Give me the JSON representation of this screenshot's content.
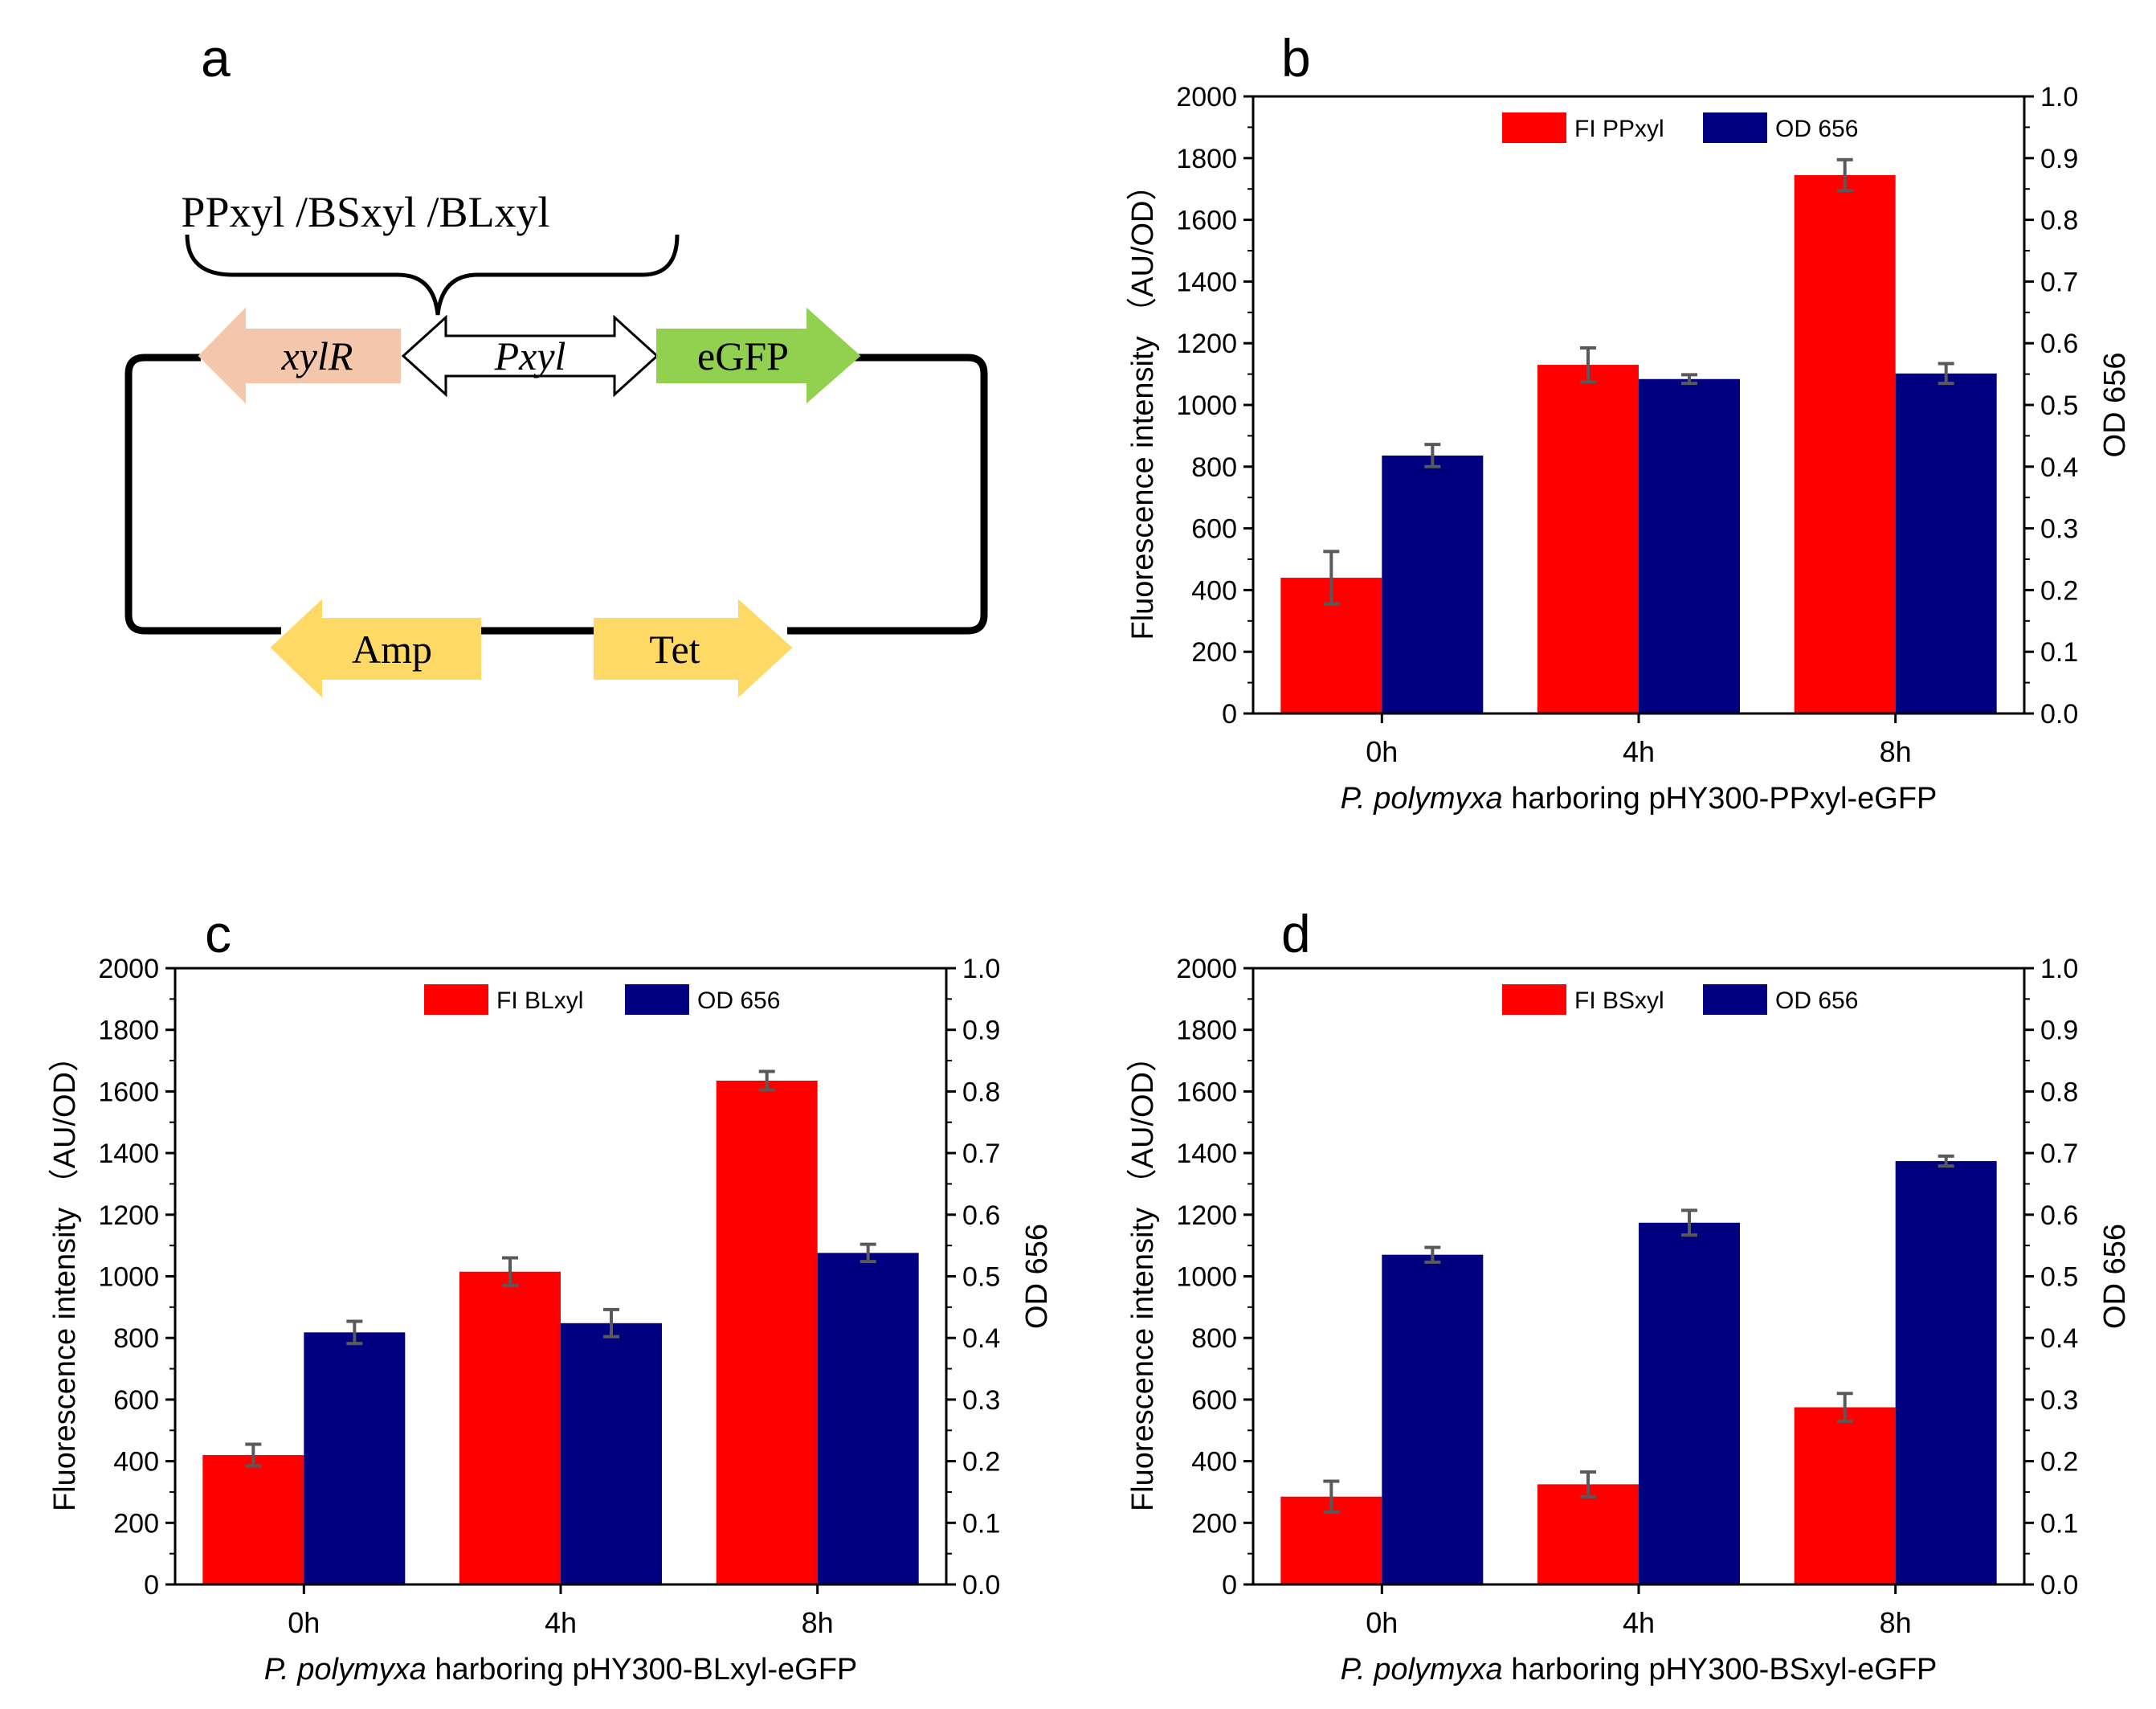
{
  "panel_a": {
    "letter": "a",
    "brace_label": "PPxyl /BSxyl /BLxyl",
    "genes": {
      "xylR": "xylR",
      "pxyl": "Pxyl",
      "egfp": "eGFP",
      "amp": "Amp",
      "tet": "Tet"
    },
    "colors": {
      "xylR": "#F4C7AC",
      "pxyl": "#FFFFFF",
      "egfp": "#92D050",
      "amp": "#FFD966",
      "tet": "#FFD966"
    }
  },
  "colors": {
    "fi": "#FF0000",
    "od": "#000080",
    "error": "#595959"
  },
  "chart_data": [
    {
      "id": "b",
      "letter": "b",
      "type": "bar",
      "categories": [
        "0h",
        "4h",
        "8h"
      ],
      "series": [
        {
          "name": "FI PPxyl",
          "axis": "left",
          "values": [
            440,
            1130,
            1745
          ],
          "errors": [
            85,
            55,
            50
          ]
        },
        {
          "name": "OD 656",
          "axis": "right",
          "values": [
            0.418,
            0.542,
            0.551
          ],
          "errors": [
            0.018,
            0.007,
            0.016
          ]
        }
      ],
      "ylabel": "Fluorescence intensity （AU/OD）",
      "y2label": "OD 656",
      "xlabel_italic": "P. polymyxa",
      "xlabel_rest": " harboring pHY300-PPxyl-eGFP",
      "ylim": [
        0,
        2000
      ],
      "y2lim": [
        0,
        1.0
      ],
      "yticks": [
        "0",
        "200",
        "400",
        "600",
        "800",
        "1000",
        "1200",
        "1400",
        "1600",
        "1800",
        "2000"
      ],
      "y2ticks": [
        "0.0",
        "0.1",
        "0.2",
        "0.3",
        "0.4",
        "0.5",
        "0.6",
        "0.7",
        "0.8",
        "0.9",
        "1.0"
      ],
      "legend_position": "top"
    },
    {
      "id": "c",
      "letter": "c",
      "type": "bar",
      "categories": [
        "0h",
        "4h",
        "8h"
      ],
      "series": [
        {
          "name": "FI BLxyl",
          "axis": "left",
          "values": [
            420,
            1015,
            1635
          ],
          "errors": [
            35,
            45,
            30
          ]
        },
        {
          "name": "OD 656",
          "axis": "right",
          "values": [
            0.409,
            0.424,
            0.538
          ],
          "errors": [
            0.018,
            0.022,
            0.014
          ]
        }
      ],
      "ylabel": "Fluorescence intensity （AU/OD）",
      "y2label": "OD 656",
      "xlabel_italic": "P. polymyxa",
      "xlabel_rest": " harboring pHY300-BLxyl-eGFP",
      "ylim": [
        0,
        2000
      ],
      "y2lim": [
        0,
        1.0
      ],
      "yticks": [
        "0",
        "200",
        "400",
        "600",
        "800",
        "1000",
        "1200",
        "1400",
        "1600",
        "1800",
        "2000"
      ],
      "y2ticks": [
        "0.0",
        "0.1",
        "0.2",
        "0.3",
        "0.4",
        "0.5",
        "0.6",
        "0.7",
        "0.8",
        "0.9",
        "1.0"
      ],
      "legend_position": "top"
    },
    {
      "id": "d",
      "letter": "d",
      "type": "bar",
      "categories": [
        "0h",
        "4h",
        "8h"
      ],
      "series": [
        {
          "name": "FI BSxyl",
          "axis": "left",
          "values": [
            285,
            325,
            575
          ],
          "errors": [
            50,
            40,
            45
          ]
        },
        {
          "name": "OD 656",
          "axis": "right",
          "values": [
            0.535,
            0.587,
            0.687
          ],
          "errors": [
            0.012,
            0.02,
            0.008
          ]
        }
      ],
      "ylabel": "Fluorescence intensity （AU/OD）",
      "y2label": "OD 656",
      "xlabel_italic": "P. polymyxa",
      "xlabel_rest": " harboring pHY300-BSxyl-eGFP",
      "ylim": [
        0,
        2000
      ],
      "y2lim": [
        0,
        1.0
      ],
      "yticks": [
        "0",
        "200",
        "400",
        "600",
        "800",
        "1000",
        "1200",
        "1400",
        "1600",
        "1800",
        "2000"
      ],
      "y2ticks": [
        "0.0",
        "0.1",
        "0.2",
        "0.3",
        "0.4",
        "0.5",
        "0.6",
        "0.7",
        "0.8",
        "0.9",
        "1.0"
      ],
      "legend_position": "top"
    }
  ]
}
